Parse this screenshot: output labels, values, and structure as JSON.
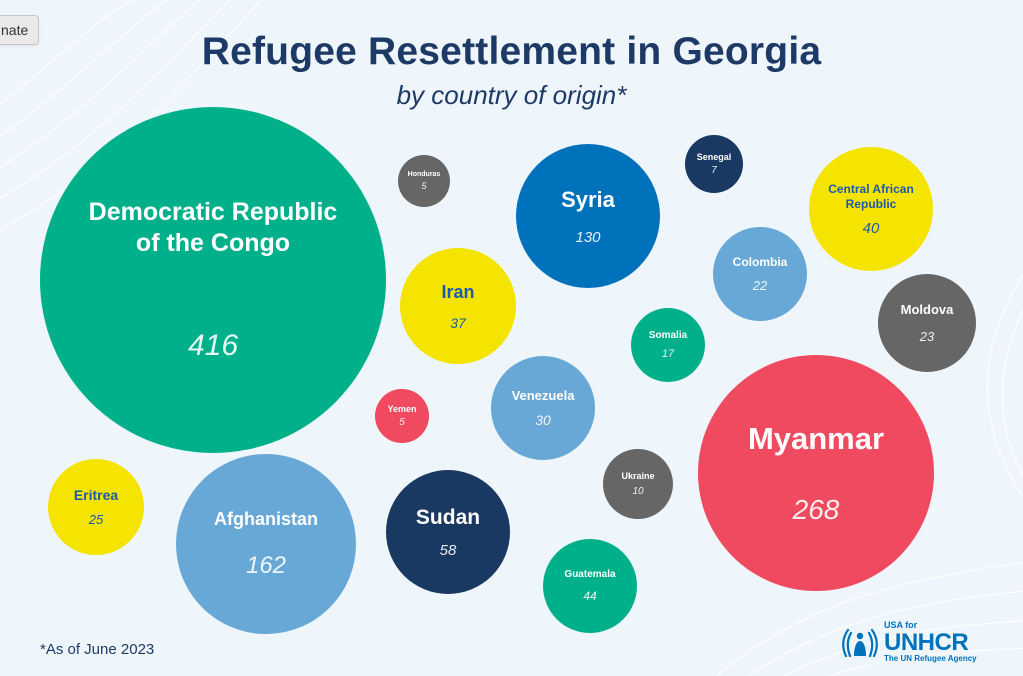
{
  "page": {
    "donate_label": "nate",
    "footnote": "*As of June 2023"
  },
  "logo": {
    "usa_for": "USA for",
    "name": "UNHCR",
    "tagline": "The UN Refugee Agency"
  },
  "colors": {
    "teal": "#00b08b",
    "blue": "#0072bc",
    "light_blue": "#68a8d7",
    "navy": "#193862",
    "yellow": "#f5e400",
    "gray": "#666666",
    "red": "#ef4a60",
    "background": "#eef5fb",
    "title": "#1d3a66"
  },
  "chart_data": {
    "type": "bubble",
    "title": "Refugee Resettlement in Georgia",
    "subtitle": "by country of origin*",
    "series": [
      {
        "name": "Democratic Republic of the Congo",
        "value": 416,
        "color": "teal"
      },
      {
        "name": "Myanmar",
        "value": 268,
        "color": "red"
      },
      {
        "name": "Afghanistan",
        "value": 162,
        "color": "light_blue"
      },
      {
        "name": "Syria",
        "value": 130,
        "color": "blue"
      },
      {
        "name": "Sudan",
        "value": 58,
        "color": "navy"
      },
      {
        "name": "Guatemala",
        "value": 44,
        "color": "teal"
      },
      {
        "name": "Central African Republic",
        "value": 40,
        "color": "yellow"
      },
      {
        "name": "Iran",
        "value": 37,
        "color": "yellow"
      },
      {
        "name": "Venezuela",
        "value": 30,
        "color": "light_blue"
      },
      {
        "name": "Eritrea",
        "value": 25,
        "color": "yellow"
      },
      {
        "name": "Moldova",
        "value": 23,
        "color": "gray"
      },
      {
        "name": "Colombia",
        "value": 22,
        "color": "light_blue"
      },
      {
        "name": "Somalia",
        "value": 17,
        "color": "teal"
      },
      {
        "name": "Ukraine",
        "value": 10,
        "color": "gray"
      },
      {
        "name": "Senegal",
        "value": 7,
        "color": "navy"
      },
      {
        "name": "Honduras",
        "value": 5,
        "color": "gray"
      },
      {
        "name": "Yemen",
        "value": 5,
        "color": "red"
      }
    ]
  }
}
